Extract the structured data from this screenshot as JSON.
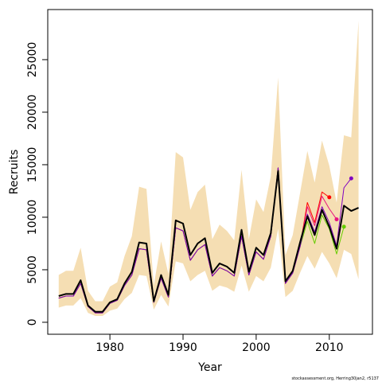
{
  "chart_data": {
    "type": "line",
    "x_label": "Year",
    "y_label": "Recruits",
    "footnote": "stockassessment.org, Herring30jan2, r5137",
    "xlim": [
      1971.5,
      2015.9
    ],
    "xticks": [
      1980,
      1990,
      2000,
      2010
    ],
    "ylim": [
      -1140,
      29770
    ],
    "yticks": [
      0,
      5000,
      10000,
      15000,
      20000,
      25000
    ],
    "x": [
      1973,
      1974,
      1975,
      1976,
      1977,
      1978,
      1979,
      1980,
      1981,
      1982,
      1983,
      1984,
      1985,
      1986,
      1987,
      1988,
      1989,
      1990,
      1991,
      1992,
      1993,
      1994,
      1995,
      1996,
      1997,
      1998,
      1999,
      2000,
      2001,
      2002,
      2003,
      2004,
      2005,
      2006,
      2007,
      2008,
      2009,
      2010,
      2011,
      2012,
      2013,
      2014
    ],
    "band": {
      "color": "#f5deb3",
      "upper": [
        4500,
        4900,
        4900,
        7100,
        3000,
        2000,
        2000,
        3400,
        3800,
        6300,
        8200,
        12900,
        12700,
        3500,
        7700,
        4600,
        16200,
        15700,
        10700,
        12400,
        13100,
        7900,
        9300,
        8700,
        7800,
        14500,
        7900,
        11700,
        10500,
        13900,
        23300,
        6400,
        8300,
        12300,
        16300,
        13300,
        17300,
        14900,
        11400,
        17800,
        17600,
        28700
      ],
      "lower": [
        1400,
        1600,
        1600,
        2300,
        900,
        600,
        600,
        1100,
        1300,
        2200,
        2800,
        4500,
        4400,
        1200,
        2600,
        1500,
        5800,
        5600,
        3900,
        4500,
        4900,
        3000,
        3500,
        3300,
        2900,
        5400,
        2900,
        4400,
        3900,
        5200,
        8900,
        2400,
        3000,
        4700,
        6300,
        5100,
        6700,
        5600,
        4200,
        6900,
        6500,
        4100
      ]
    },
    "series": [
      {
        "color": "#ff0000",
        "width": 1,
        "dot": true,
        "values": [
          2300,
          2500,
          2500,
          3700,
          1500,
          900,
          900,
          1800,
          2100,
          3500,
          4500,
          7000,
          6900,
          1900,
          4200,
          2400,
          9000,
          8700,
          5900,
          6900,
          7400,
          4400,
          5200,
          4900,
          4400,
          8200,
          4500,
          6700,
          6000,
          8200,
          14700,
          3700,
          4700,
          7200,
          11400,
          9500,
          12400,
          11900,
          null,
          null,
          null,
          null
        ]
      },
      {
        "color": "#e8157f",
        "width": 1,
        "dot": true,
        "values": [
          2300,
          2500,
          2500,
          3700,
          1500,
          900,
          900,
          1800,
          2100,
          3500,
          4500,
          7000,
          6900,
          1900,
          4200,
          2400,
          9000,
          8700,
          5900,
          6900,
          7400,
          4400,
          5200,
          4900,
          4400,
          8200,
          4500,
          6700,
          6000,
          8200,
          14700,
          3700,
          4700,
          7200,
          11000,
          9200,
          12000,
          10800,
          9800,
          null,
          null,
          null
        ]
      },
      {
        "color": "#66cc00",
        "width": 1,
        "dot": true,
        "values": [
          2300,
          2500,
          2500,
          3700,
          1500,
          900,
          900,
          1800,
          2100,
          3500,
          4500,
          7000,
          6900,
          1900,
          4200,
          2400,
          9000,
          8700,
          5900,
          6900,
          7400,
          4400,
          5200,
          4900,
          4400,
          8200,
          4500,
          6700,
          6000,
          8200,
          14700,
          3700,
          4700,
          7200,
          9600,
          7500,
          10200,
          8900,
          6500,
          9100,
          null,
          null
        ]
      },
      {
        "color": "#8000c0",
        "width": 1,
        "dot": true,
        "values": [
          2300,
          2500,
          2500,
          3700,
          1500,
          900,
          900,
          1800,
          2100,
          3500,
          4500,
          7000,
          6900,
          1900,
          4200,
          2400,
          9000,
          8700,
          5900,
          6900,
          7400,
          4400,
          5200,
          4900,
          4400,
          8200,
          4500,
          6700,
          6000,
          8200,
          14700,
          3700,
          4700,
          7200,
          10300,
          8600,
          11000,
          9500,
          7300,
          12800,
          13700,
          null
        ]
      },
      {
        "color": "#000000",
        "width": 2,
        "dot": false,
        "values": [
          2500,
          2700,
          2700,
          4000,
          1600,
          1000,
          1000,
          1900,
          2200,
          3700,
          4800,
          7600,
          7500,
          2000,
          4500,
          2600,
          9700,
          9400,
          6400,
          7500,
          8000,
          4700,
          5600,
          5300,
          4700,
          8800,
          4800,
          7100,
          6400,
          8500,
          14400,
          3900,
          4900,
          7600,
          10100,
          8300,
          10700,
          9100,
          7000,
          11100,
          10600,
          10900
        ]
      }
    ]
  }
}
